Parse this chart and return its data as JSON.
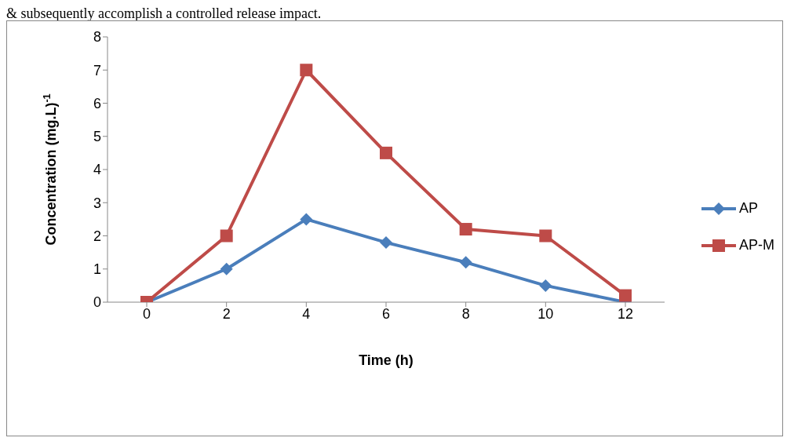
{
  "chart_data": {
    "type": "line",
    "xlabel": "Time (h)",
    "ylabel": "Concentration (mg.L)$^{-1}$",
    "annotations": [
      "& subsequently accomplish a controlled release impact."
    ],
    "categories": [
      "0",
      "2",
      "4",
      "6",
      "8",
      "10",
      "12"
    ],
    "series": [
      {
        "name": "AP",
        "color": "#4a7ebb",
        "marker": "diamond",
        "values": [
          0,
          1,
          2.5,
          1.8,
          1.2,
          0.5,
          0
        ]
      },
      {
        "name": "AP-M",
        "color": "#be4b48",
        "marker": "square",
        "values": [
          0,
          2,
          7,
          4.5,
          2.2,
          2,
          0.2
        ]
      }
    ],
    "ylim": [
      0,
      8
    ],
    "yticks": [
      0,
      1,
      2,
      3,
      4,
      5,
      6,
      7,
      8
    ],
    "grid": false,
    "legend": "right",
    "line_style": "solid"
  }
}
